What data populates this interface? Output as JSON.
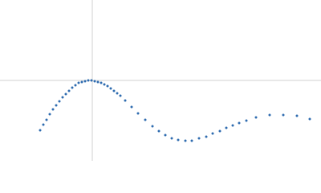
{
  "chart_data": {
    "type": "scatter",
    "x": [
      -65,
      -61,
      -57,
      -53,
      -49,
      -45,
      -41,
      -37,
      -33,
      -29,
      -25,
      -21,
      -17,
      -13,
      -9,
      -5,
      -1,
      3,
      7,
      11,
      15,
      19,
      23,
      27,
      31,
      35,
      41,
      49,
      57,
      66,
      75,
      83,
      91,
      99,
      107,
      116,
      124,
      133,
      142,
      150,
      159,
      167,
      175,
      183,
      192,
      204,
      221,
      238,
      255,
      271
    ],
    "values": [
      -62,
      -55,
      -49,
      -42,
      -36,
      -31,
      -26,
      -21,
      -17,
      -13,
      -9,
      -6,
      -3,
      -2,
      -1,
      0,
      0,
      -1,
      -2,
      -3,
      -5,
      -7,
      -10,
      -13,
      -16,
      -19,
      -25,
      -33,
      -41,
      -49,
      -57,
      -63,
      -68,
      -72,
      -74,
      -75,
      -75,
      -72,
      -70,
      -66,
      -63,
      -59,
      -56,
      -53,
      -50,
      -46,
      -43,
      -43,
      -44,
      -48
    ],
    "color": "#2f6cb0",
    "xlim": [
      -115,
      285
    ],
    "ylim": [
      -100,
      100
    ]
  }
}
